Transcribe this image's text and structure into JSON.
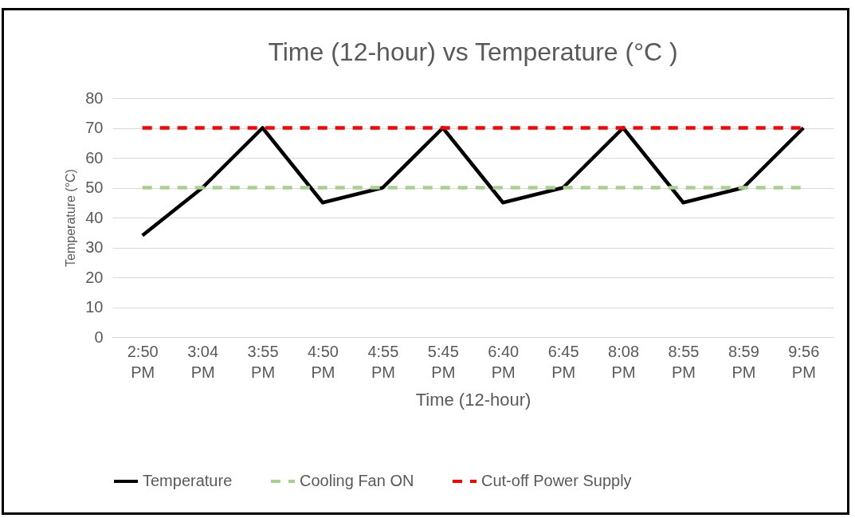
{
  "chart_data": {
    "type": "line",
    "title": "Time (12-hour) vs Temperature (°C )",
    "xlabel": "Time (12-hour)",
    "ylabel": "Temperature (°C)",
    "categories": [
      "2:50 PM",
      "3:04 PM",
      "3:55 PM",
      "4:50 PM",
      "4:55 PM",
      "5:45 PM",
      "6:40 PM",
      "6:45 PM",
      "8:08 PM",
      "8:55 PM",
      "8:59 PM",
      "9:56 PM"
    ],
    "series": [
      {
        "name": "Temperature",
        "color": "#000000",
        "line_style": "solid",
        "values": [
          34,
          50,
          70,
          45,
          50,
          70,
          45,
          50,
          70,
          45,
          50,
          70
        ]
      },
      {
        "name": "Cooling Fan ON",
        "color": "#a9d18e",
        "line_style": "dashed",
        "values": [
          50,
          50,
          50,
          50,
          50,
          50,
          50,
          50,
          50,
          50,
          50,
          50
        ]
      },
      {
        "name": "Cut-off Power Supply",
        "color": "#ff0000",
        "line_style": "dashed",
        "values": [
          70,
          70,
          70,
          70,
          70,
          70,
          70,
          70,
          70,
          70,
          70,
          70
        ]
      }
    ],
    "ylim": [
      0,
      80
    ],
    "yticks": [
      0,
      10,
      20,
      30,
      40,
      50,
      60,
      70,
      80
    ],
    "grid": "y",
    "legend": "bottom",
    "marker": "none"
  }
}
